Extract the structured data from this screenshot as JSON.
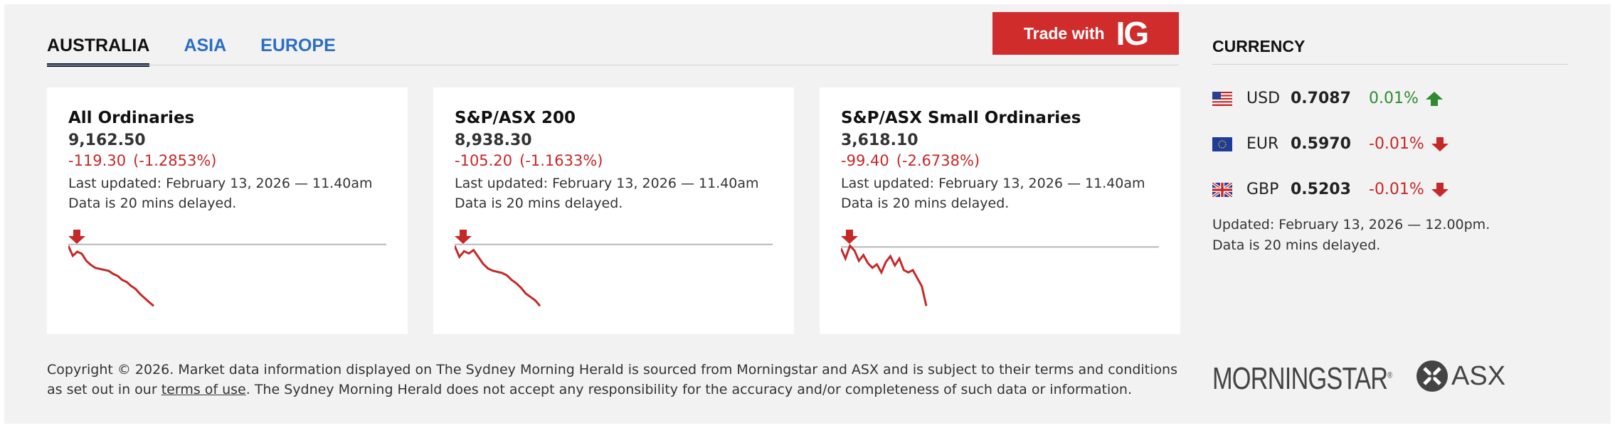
{
  "tabs": [
    {
      "label": "AUSTRALIA",
      "active": true
    },
    {
      "label": "ASIA",
      "active": false
    },
    {
      "label": "EUROPE",
      "active": false
    }
  ],
  "ig_button": {
    "label": "Trade with",
    "logo": "IG"
  },
  "indices": [
    {
      "name": "All Ordinaries",
      "value": "9,162.50",
      "change": "-119.30",
      "change_pct": "(-1.2853%)",
      "updated": "Last updated: February 13, 2026 — 11.40am",
      "delay": "Data is 20 mins delayed.",
      "sparkline": [
        9281.8,
        9262,
        9270,
        9266,
        9252,
        9244,
        9238,
        9236,
        9234,
        9232,
        9226,
        9222,
        9214,
        9210,
        9202,
        9196,
        9186,
        9178,
        9170,
        9162.5
      ]
    },
    {
      "name": "S&P/ASX 200",
      "value": "8,938.30",
      "change": "-105.20",
      "change_pct": "(-1.1633%)",
      "updated": "Last updated: February 13, 2026 — 11.40am",
      "delay": "Data is 20 mins delayed.",
      "sparkline": [
        9043.5,
        9024,
        9034,
        9030,
        9036,
        9024,
        9012,
        9004,
        9000,
        8998,
        8996,
        8992,
        8984,
        8978,
        8970,
        8960,
        8954,
        8948,
        8938.3
      ]
    },
    {
      "name": "S&P/ASX Small Ordinaries",
      "value": "3,618.10",
      "change": "-99.40",
      "change_pct": "(-2.6738%)",
      "updated": "Last updated: February 13, 2026 — 11.40am",
      "delay": "Data is 20 mins delayed.",
      "sparkline": [
        3717.5,
        3700,
        3722,
        3714,
        3696,
        3706,
        3692,
        3684,
        3690,
        3676,
        3694,
        3704,
        3688,
        3700,
        3680,
        3676,
        3680,
        3666,
        3652,
        3618.1
      ]
    }
  ],
  "currency": {
    "title": "CURRENCY",
    "rates": [
      {
        "code": "USD",
        "value": "0.7087",
        "change": "0.01%",
        "direction": "up",
        "flag": "us-flag"
      },
      {
        "code": "EUR",
        "value": "0.5970",
        "change": "-0.01%",
        "direction": "down",
        "flag": "eu-flag"
      },
      {
        "code": "GBP",
        "value": "0.5203",
        "change": "-0.01%",
        "direction": "down",
        "flag": "uk-flag"
      }
    ],
    "updated": "Updated: February 13, 2026 — 12.00pm.",
    "delay": "Data is 20 mins delayed."
  },
  "footer": {
    "copyright_before": "Copyright © 2026. Market data information displayed on The Sydney Morning Herald is sourced from Morningstar and ASX and is subject to their terms and conditions as set out in our ",
    "terms_link": "terms of use",
    "copyright_after": ". The Sydney Morning Herald does not accept any responsibility for the accuracy and/or completeness of such data or information."
  },
  "logos": {
    "morningstar": "MORNINGSTAR",
    "asx": "ASX"
  },
  "colors": {
    "negative": "#c62828",
    "positive": "#2e8b2e",
    "accent": "#2b6fc2",
    "ig_red": "#d12c2c"
  }
}
